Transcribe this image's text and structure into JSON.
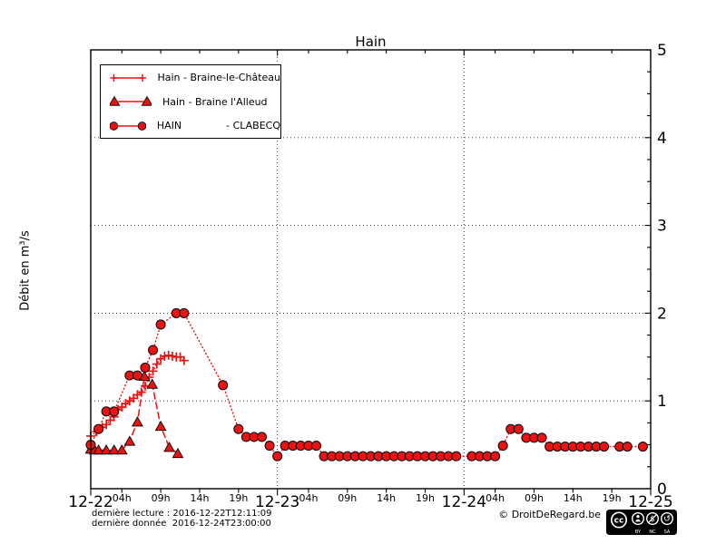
{
  "colors": {
    "series_red": "#ee1111",
    "marker_edge": "#111111",
    "axis_black": "#000000",
    "background": "#ffffff"
  },
  "chart_data": {
    "type": "line",
    "title": "Hain",
    "xlabel": "",
    "ylabel": "Débit en m³/s",
    "ylim": [
      0,
      5
    ],
    "xlim_hours": [
      0,
      72
    ],
    "grid": "dotted",
    "legend_position": "upper-left",
    "y_tick_labels": [
      "0",
      "1",
      "2",
      "3",
      "4",
      "5"
    ],
    "x_day_labels": [
      "12-22",
      "12-23",
      "12-24",
      "12-25"
    ],
    "x_day_hours": [
      0,
      24,
      48,
      72
    ],
    "x_hour_labels": [
      "04h",
      "09h",
      "14h",
      "19h"
    ],
    "x_hour_tick_hours": [
      4,
      9,
      14,
      19
    ],
    "series": [
      {
        "key": "braine-le-chateau",
        "name": "Hain - Braine-le-Château",
        "marker": "plus",
        "linestyle": "dotted",
        "color": "#ee1111",
        "points": [
          [
            0,
            0.6
          ],
          [
            0.75,
            0.65
          ],
          [
            1.5,
            0.7
          ],
          [
            2,
            0.73
          ],
          [
            2.5,
            0.78
          ],
          [
            3,
            0.82
          ],
          [
            3.5,
            0.9
          ],
          [
            4,
            0.93
          ],
          [
            4.5,
            0.97
          ],
          [
            5,
            1.0
          ],
          [
            5.5,
            1.03
          ],
          [
            6,
            1.07
          ],
          [
            6.5,
            1.1
          ],
          [
            7,
            1.17
          ],
          [
            7.5,
            1.27
          ],
          [
            8,
            1.34
          ],
          [
            8.5,
            1.42
          ],
          [
            9,
            1.48
          ],
          [
            9.5,
            1.51
          ],
          [
            10,
            1.52
          ],
          [
            10.5,
            1.51
          ],
          [
            11,
            1.5
          ],
          [
            11.5,
            1.5
          ],
          [
            12,
            1.46
          ]
        ]
      },
      {
        "key": "braine-l-alleud",
        "name": "Hain - Braine l'Alleud",
        "marker": "triangle",
        "linestyle": "dashed",
        "color": "#ee1111",
        "points": [
          [
            0,
            0.45
          ],
          [
            0.5,
            0.44
          ],
          [
            1,
            0.44
          ],
          [
            2,
            0.44
          ],
          [
            3,
            0.44
          ],
          [
            4,
            0.44
          ],
          [
            5,
            0.54
          ],
          [
            6,
            0.76
          ],
          [
            6.9,
            1.28
          ],
          [
            7.9,
            1.19
          ],
          [
            9,
            0.71
          ],
          [
            10.1,
            0.47
          ],
          [
            11.2,
            0.4
          ]
        ]
      },
      {
        "key": "clabecq",
        "name": "HAIN - CLABECQ",
        "marker": "circle",
        "linestyle": "dotted",
        "color": "#ee1111",
        "points": [
          [
            0,
            0.5
          ],
          [
            1,
            0.68
          ],
          [
            2,
            0.88
          ],
          [
            3,
            0.88
          ],
          [
            5,
            1.29
          ],
          [
            6,
            1.29
          ],
          [
            7,
            1.38
          ],
          [
            8,
            1.58
          ],
          [
            9,
            1.87
          ],
          [
            11,
            2.0
          ],
          [
            12,
            2.0
          ],
          [
            17,
            1.18
          ],
          [
            19,
            0.68
          ],
          [
            20,
            0.59
          ],
          [
            21,
            0.59
          ],
          [
            22,
            0.59
          ],
          [
            23,
            0.49
          ],
          [
            24,
            0.37
          ],
          [
            25,
            0.49
          ],
          [
            26,
            0.49
          ],
          [
            27,
            0.49
          ],
          [
            28,
            0.49
          ],
          [
            29,
            0.49
          ],
          [
            30,
            0.37
          ],
          [
            31,
            0.37
          ],
          [
            32,
            0.37
          ],
          [
            33,
            0.37
          ],
          [
            34,
            0.37
          ],
          [
            35,
            0.37
          ],
          [
            36,
            0.37
          ],
          [
            37,
            0.37
          ],
          [
            38,
            0.37
          ],
          [
            39,
            0.37
          ],
          [
            40,
            0.37
          ],
          [
            41,
            0.37
          ],
          [
            42,
            0.37
          ],
          [
            43,
            0.37
          ],
          [
            44,
            0.37
          ],
          [
            45,
            0.37
          ],
          [
            46,
            0.37
          ],
          [
            47,
            0.37
          ],
          [
            49,
            0.37
          ],
          [
            50,
            0.37
          ],
          [
            51,
            0.37
          ],
          [
            52,
            0.37
          ],
          [
            53,
            0.49
          ],
          [
            54,
            0.68
          ],
          [
            55,
            0.68
          ],
          [
            56,
            0.58
          ],
          [
            57,
            0.58
          ],
          [
            58,
            0.58
          ],
          [
            59,
            0.48
          ],
          [
            60,
            0.48
          ],
          [
            61,
            0.48
          ],
          [
            62,
            0.48
          ],
          [
            63,
            0.48
          ],
          [
            64,
            0.48
          ],
          [
            65,
            0.48
          ],
          [
            66,
            0.48
          ],
          [
            68,
            0.48
          ],
          [
            69,
            0.48
          ],
          [
            71,
            0.48
          ]
        ]
      }
    ]
  },
  "legend": {
    "items": [
      {
        "label": "Hain - Braine-le-Château"
      },
      {
        "label": "Hain - Braine l'Alleud"
      },
      {
        "label": "HAIN              - CLABECQ"
      }
    ]
  },
  "footer": {
    "last_reading": "dernière lecture : 2016-12-22T12:11:09",
    "last_data": "dernière donnée  2016-12-24T23:00:00",
    "copyright": "© DroitDeRegard.be",
    "cc_badge": {
      "cc_label": "cc",
      "by_label": "BY",
      "nc_label": "NC",
      "sa_label": "SA",
      "nc_glyph": "$",
      "sa_glyph": "↺"
    }
  }
}
